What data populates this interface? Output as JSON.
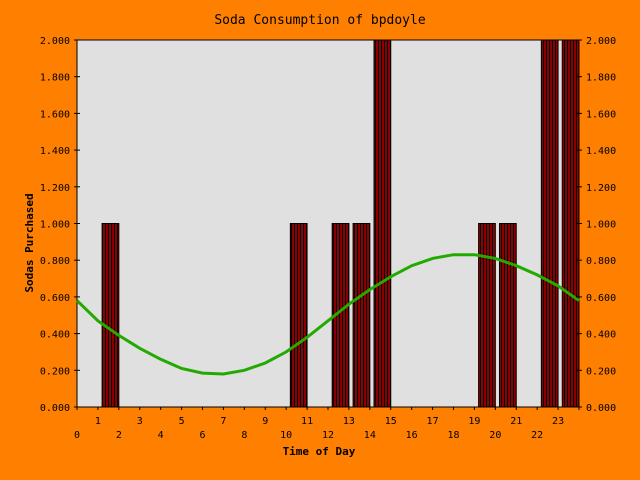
{
  "chart_data": {
    "type": "bar",
    "title": "Soda Consumption of bpdoyle",
    "xlabel": "Time of Day",
    "ylabel": "Sodas Purchased",
    "x_ticks": [
      "0",
      "1",
      "2",
      "3",
      "4",
      "5",
      "6",
      "7",
      "8",
      "9",
      "10",
      "11",
      "12",
      "13",
      "14",
      "15",
      "16",
      "17",
      "18",
      "19",
      "20",
      "21",
      "22",
      "23"
    ],
    "y_ticks": [
      "0.000",
      "0.200",
      "0.400",
      "0.600",
      "0.800",
      "1.000",
      "1.200",
      "1.400",
      "1.600",
      "1.800",
      "2.000"
    ],
    "ylim": [
      0,
      2
    ],
    "xlim": [
      0,
      24
    ],
    "grid": false,
    "series": [
      {
        "type": "bar",
        "x": [
          1,
          10,
          12,
          13,
          14,
          19,
          20,
          22,
          23
        ],
        "values": [
          1,
          1,
          1,
          1,
          2,
          1,
          1,
          2,
          2
        ]
      },
      {
        "type": "line",
        "x": [
          0,
          1,
          2,
          3,
          4,
          5,
          6,
          7,
          8,
          9,
          10,
          11,
          12,
          13,
          14,
          15,
          16,
          17,
          18,
          19,
          20,
          21,
          22,
          23,
          24
        ],
        "values": [
          0.58,
          0.47,
          0.39,
          0.32,
          0.26,
          0.21,
          0.185,
          0.18,
          0.2,
          0.24,
          0.3,
          0.38,
          0.47,
          0.56,
          0.64,
          0.71,
          0.77,
          0.81,
          0.83,
          0.83,
          0.81,
          0.77,
          0.72,
          0.66,
          0.58
        ]
      }
    ],
    "colors": {
      "background": "#ff8000",
      "plot_area": "#e0e0e0",
      "bar_fill": "#8b0000",
      "bar_stripe": "#000000",
      "trend_line": "#22aa00"
    }
  }
}
